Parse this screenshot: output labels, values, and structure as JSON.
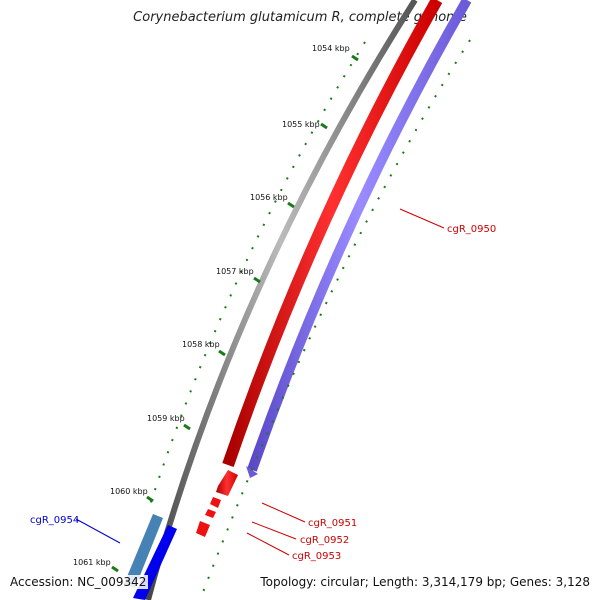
{
  "title": "Corynebacterium glutamicum R, complete genome",
  "ticks": [
    "1054 kbp",
    "1055 kbp",
    "1056 kbp",
    "1057 kbp",
    "1058 kbp",
    "1059 kbp",
    "1060 kbp",
    "1061 kbp"
  ],
  "genes": {
    "cgR_0950": "cgR_0950",
    "cgR_0951": "cgR_0951",
    "cgR_0952": "cgR_0952",
    "cgR_0953": "cgR_0953",
    "cgR_0954": "cgR_0954"
  },
  "colors": {
    "backbone": "#777777",
    "forward_gene": "#ff0000",
    "reverse_gene": "#7b68ee",
    "reverse_gene_2": "#0000ff",
    "reverse_gene_3": "#4682b4",
    "tick": "#1a7a1a",
    "label_red": "#cc0000",
    "label_blue": "#0000cc"
  },
  "footer": {
    "accession": "Accession: NC_009342",
    "topology": "Topology: circular; Length: 3,314,179 bp; Genes: 3,128"
  }
}
